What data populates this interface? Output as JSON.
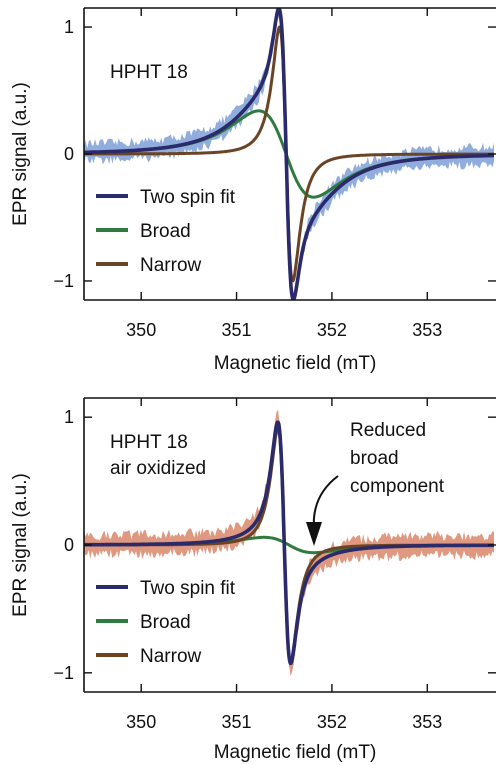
{
  "chart_data": [
    {
      "type": "line",
      "panel_label": "HPHT 18",
      "annotation": "",
      "xlabel": "Magnetic field (mT)",
      "ylabel": "EPR signal (a.u.)",
      "xlim": [
        349.4,
        353.7
      ],
      "ylim": [
        -1.15,
        1.15
      ],
      "xticks": [
        350,
        351,
        352,
        353
      ],
      "yticks": [
        -1,
        0,
        1
      ],
      "grid": false,
      "legend_position": "bottom-left",
      "noise_band_color": "#7c9fd8",
      "series": [
        {
          "name": "Two spin fit",
          "role": "total",
          "color": "#2b2a6b"
        },
        {
          "name": "Broad",
          "role": "broad",
          "color": "#2f7a3e"
        },
        {
          "name": "Narrow",
          "role": "narrow",
          "color": "#6b4426"
        }
      ],
      "components": {
        "broad": {
          "center": 351.52,
          "width": 0.5,
          "amplitude": 0.34
        },
        "narrow": {
          "center": 351.52,
          "width": 0.12,
          "amplitude": 1.0
        }
      },
      "noise": {
        "amplitude": 0.08
      }
    },
    {
      "type": "line",
      "panel_label": "HPHT 18",
      "panel_sublabel": "air oxidized",
      "annotation": "Reduced broad component",
      "xlabel": "Magnetic field (mT)",
      "ylabel": "EPR signal (a.u.)",
      "xlim": [
        349.4,
        353.7
      ],
      "ylim": [
        -1.15,
        1.15
      ],
      "xticks": [
        350,
        351,
        352,
        353
      ],
      "yticks": [
        -1,
        0,
        1
      ],
      "grid": false,
      "legend_position": "bottom-left",
      "noise_band_color": "#d9876a",
      "series": [
        {
          "name": "Two spin fit",
          "role": "total",
          "color": "#2b2a6b"
        },
        {
          "name": "Broad",
          "role": "broad",
          "color": "#2f7a3e"
        },
        {
          "name": "Narrow",
          "role": "narrow",
          "color": "#6b4426"
        }
      ],
      "components": {
        "broad": {
          "center": 351.55,
          "width": 0.45,
          "amplitude": 0.06
        },
        "narrow": {
          "center": 351.5,
          "width": 0.115,
          "amplitude": 0.92
        }
      },
      "noise": {
        "amplitude": 0.09
      }
    }
  ]
}
